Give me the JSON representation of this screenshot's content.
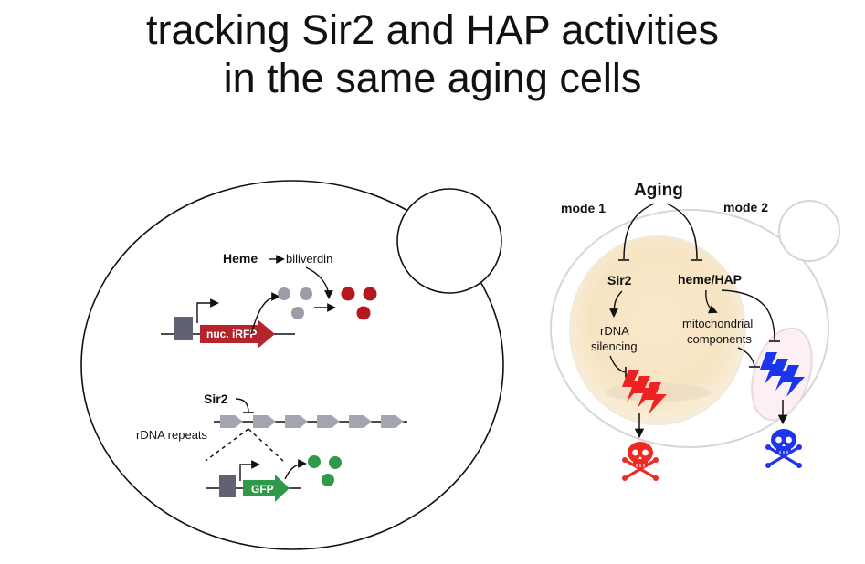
{
  "slide": {
    "title_line1": "tracking Sir2 and HAP activities",
    "title_line2": "in the same aging cells"
  },
  "left_diagram": {
    "heme": "Heme",
    "biliverdin": "biliverdin",
    "iRFP_label": "nuc. iRFP",
    "sir2": "Sir2",
    "rdna_repeats": "rDNA repeats",
    "gfp_label": "GFP",
    "colors": {
      "iRFP": "#b4242a",
      "gfp": "#2e9a48",
      "grey_dot": "#9b9ea8",
      "red_dot": "#b5191e",
      "green_dot": "#2f9a4a"
    }
  },
  "right_diagram": {
    "aging": "Aging",
    "mode1": "mode 1",
    "mode2": "mode 2",
    "sir2": "Sir2",
    "heme_hap": "heme/HAP",
    "rdna_line1": "rDNA",
    "rdna_line2": "silencing",
    "mito_line1": "mitochondrial",
    "mito_line2": "components",
    "colors": {
      "mode1_bolt": "#ee2222",
      "mode2_bolt": "#1a35ee",
      "skull_red": "#ee2a24",
      "skull_blue": "#1f35ec"
    }
  }
}
